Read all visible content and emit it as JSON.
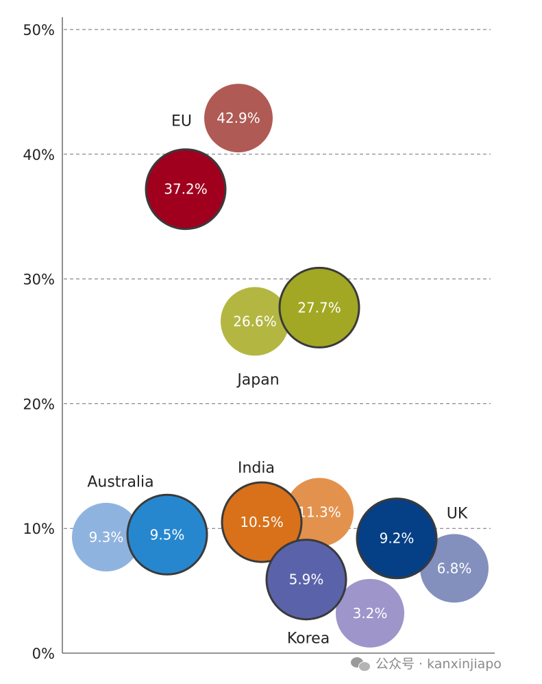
{
  "chart_data": {
    "type": "scatter",
    "y_unit": "%",
    "ylim": [
      0,
      50
    ],
    "yticks": [
      "0%",
      "10%",
      "20%",
      "30%",
      "40%",
      "50%"
    ],
    "grid": "horizontal dashed",
    "countries": [
      {
        "name": "EU",
        "label_position": "upper-left",
        "bubbles": [
          {
            "value": 42.9,
            "label": "42.9%",
            "color": "#b05a55",
            "outlined": false
          },
          {
            "value": 37.2,
            "label": "37.2%",
            "color": "#a0001e",
            "outlined": true
          }
        ]
      },
      {
        "name": "Japan",
        "label_position": "below",
        "bubbles": [
          {
            "value": 27.7,
            "label": "27.7%",
            "color": "#a3a824",
            "outlined": true
          },
          {
            "value": 26.6,
            "label": "26.6%",
            "color": "#b4b642",
            "outlined": false
          }
        ]
      },
      {
        "name": "India",
        "label_position": "upper-left",
        "bubbles": [
          {
            "value": 11.3,
            "label": "11.3%",
            "color": "#e3924d",
            "outlined": false
          },
          {
            "value": 10.5,
            "label": "10.5%",
            "color": "#d8711a",
            "outlined": true
          }
        ]
      },
      {
        "name": "Australia",
        "label_position": "upper-left",
        "bubbles": [
          {
            "value": 9.3,
            "label": "9.3%",
            "color": "#8fb3df",
            "outlined": false
          },
          {
            "value": 9.5,
            "label": "9.5%",
            "color": "#2687cf",
            "outlined": true
          }
        ]
      },
      {
        "name": "Korea",
        "label_position": "below",
        "bubbles": [
          {
            "value": 5.9,
            "label": "5.9%",
            "color": "#5a63aa",
            "outlined": true
          },
          {
            "value": 3.2,
            "label": "3.2%",
            "color": "#9e95cb",
            "outlined": false
          }
        ]
      },
      {
        "name": "UK",
        "label_position": "upper-right",
        "bubbles": [
          {
            "value": 9.2,
            "label": "9.2%",
            "color": "#053f86",
            "outlined": true
          },
          {
            "value": 6.8,
            "label": "6.8%",
            "color": "#8390bd",
            "outlined": false
          }
        ]
      }
    ]
  },
  "watermark": {
    "text": "公众号 · kanxinjiapo",
    "icon": "wechat-icon"
  }
}
